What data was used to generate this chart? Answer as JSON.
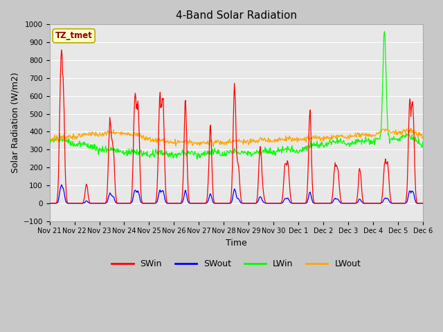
{
  "title": "4-Band Solar Radiation",
  "xlabel": "Time",
  "ylabel": "Solar Radiation (W/m2)",
  "annotation": "TZ_tmet",
  "ylim": [
    -100,
    1000
  ],
  "yticks": [
    -100,
    0,
    100,
    200,
    300,
    400,
    500,
    600,
    700,
    800,
    900,
    1000
  ],
  "tick_labels": [
    "Nov 21",
    "Nov 22",
    "Nov 23",
    "Nov 24",
    "Nov 25",
    "Nov 26",
    "Nov 27",
    "Nov 28",
    "Nov 29",
    "Nov 30",
    "Dec 1",
    "Dec 2",
    "Dec 3",
    "Dec 4",
    "Dec 5",
    "Dec 6"
  ],
  "legend_labels": [
    "SWin",
    "SWout",
    "LWin",
    "LWout"
  ],
  "legend_colors": [
    "red",
    "blue",
    "#00ff00",
    "orange"
  ],
  "fig_facecolor": "#c8c8c8",
  "ax_facecolor": "#e8e8e8",
  "grid_color": "white",
  "title_fontsize": 11,
  "axis_fontsize": 9,
  "tick_fontsize": 7,
  "legend_fontsize": 9
}
